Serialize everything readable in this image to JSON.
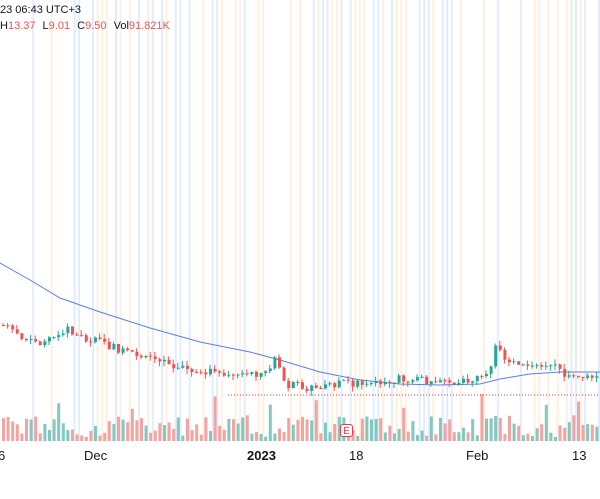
{
  "legend": {
    "timestamp": "23 06:43 UTC+3",
    "high_label": "H",
    "high": "13.37",
    "low_label": "L",
    "low": "9.01",
    "close_label": "C",
    "close": "9.50",
    "vol_label": "Vol",
    "vol": "91.821K"
  },
  "xaxis": {
    "labels": [
      "6",
      "Dec",
      "2023",
      "18",
      "Feb",
      "13"
    ]
  },
  "earnings_badge": "E",
  "colors": {
    "up": "#26a69a",
    "down": "#ef5350",
    "vol_up": "#82c8c0",
    "vol_down": "#f3a3a0",
    "ma": "#5b7ee5",
    "stripe_blue": "#e3ecfb",
    "stripe_orange": "#fdf0df"
  },
  "chart_data": {
    "type": "candlestick",
    "x": [
      "6",
      "Dec",
      "2023",
      "18",
      "Feb",
      "13"
    ],
    "price_last": 9.5,
    "indicators": [
      "Moving average",
      "Volume"
    ]
  }
}
